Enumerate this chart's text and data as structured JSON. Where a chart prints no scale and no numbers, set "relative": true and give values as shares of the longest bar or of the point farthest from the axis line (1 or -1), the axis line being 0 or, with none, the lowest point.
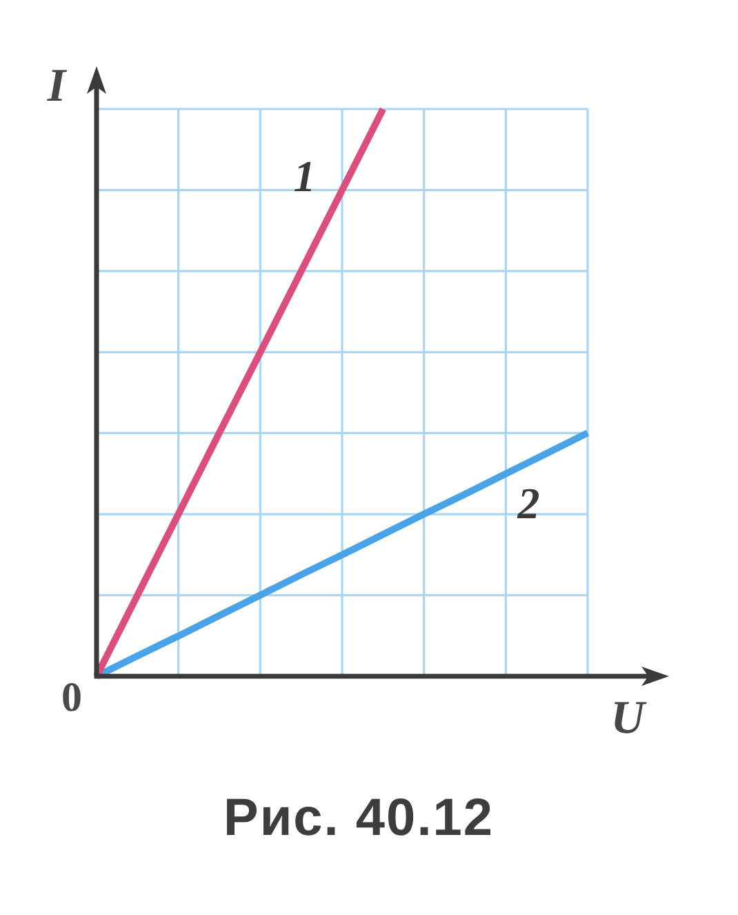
{
  "chart_data": {
    "type": "line",
    "xlabel": "U",
    "ylabel": "I",
    "relative": true,
    "grid": true,
    "marker": "none",
    "categories": [
      null,
      null,
      null,
      null,
      null,
      null,
      null,
      null,
      null,
      null,
      null,
      null,
      null
    ],
    "series": [
      {
        "name": "1",
        "color": "#d9507e",
        "values": [
          0,
          0.143,
          0.286,
          0.429,
          0.571,
          0.714,
          0.857,
          1,
          null,
          null,
          null,
          null,
          null
        ]
      },
      {
        "name": "2",
        "color": "#4aa3e6",
        "values": [
          0,
          0.036,
          0.071,
          0.107,
          0.143,
          0.179,
          0.214,
          0.25,
          0.286,
          0.321,
          0.357,
          0.393,
          0.429
        ]
      }
    ],
    "annotations": [
      "0",
      "Рис. 40.12"
    ]
  }
}
